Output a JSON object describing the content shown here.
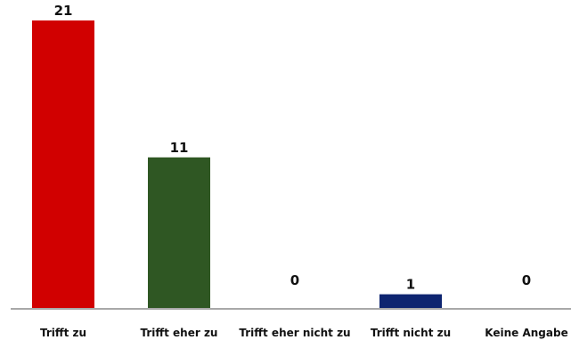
{
  "chart_data": {
    "type": "bar",
    "categories": [
      "Trifft zu",
      "Trifft eher zu",
      "Trifft eher nicht zu",
      "Trifft nicht zu",
      "Keine Angabe"
    ],
    "values": [
      21,
      11,
      0,
      1,
      0
    ],
    "value_labels": [
      "21",
      "11",
      "0",
      "1",
      "0"
    ],
    "colors": [
      "#d10000",
      "#2f5723",
      "#8a8a8a",
      "#0d2470",
      "#8a8a8a"
    ],
    "ylim": [
      0,
      21
    ],
    "grid": false,
    "legend": "none"
  }
}
